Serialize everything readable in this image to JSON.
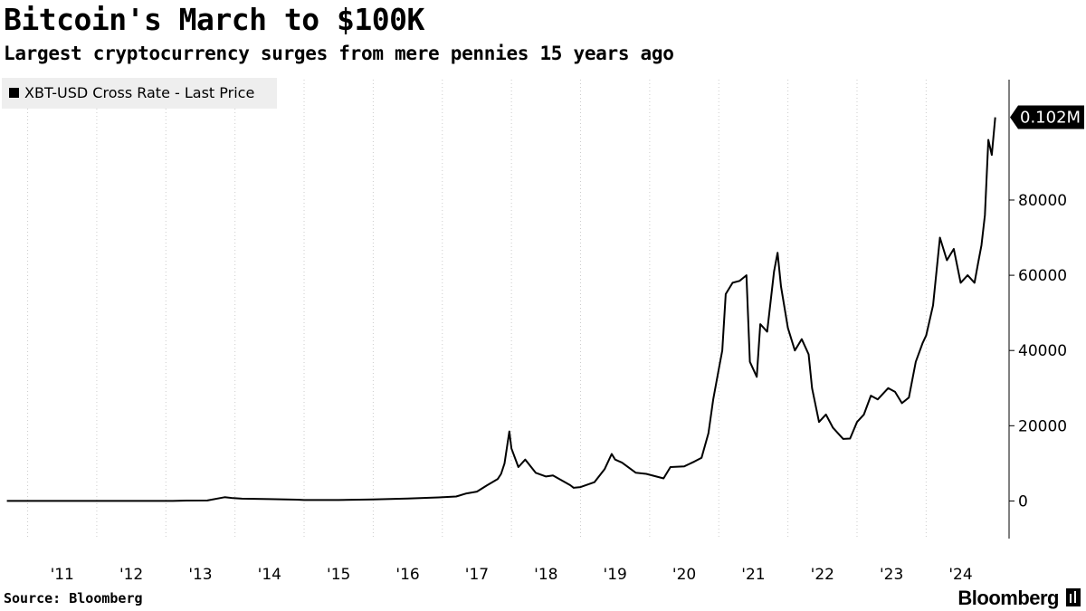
{
  "header": {
    "title": "Bitcoin's March to $100K",
    "subtitle": "Largest cryptocurrency surges from mere pennies 15 years ago"
  },
  "footer": {
    "source": "Source: Bloomberg",
    "brand": "Bloomberg"
  },
  "colors": {
    "line": "#000000",
    "grid": "#cccccc",
    "legend_bg": "#eeeeee"
  },
  "chart_data": {
    "type": "line",
    "title": "Bitcoin's March to $100K",
    "subtitle": "Largest cryptocurrency surges from mere pennies 15 years ago",
    "series": [
      {
        "name": "XBT-USD Cross Rate - Last Price",
        "x": [
          2010.7,
          2011.0,
          2011.4,
          2011.8,
          2012.0,
          2012.5,
          2012.9,
          2013.1,
          2013.3,
          2013.6,
          2013.85,
          2013.95,
          2014.1,
          2014.5,
          2014.9,
          2015.0,
          2015.5,
          2015.9,
          2016.0,
          2016.5,
          2016.95,
          2017.2,
          2017.35,
          2017.5,
          2017.65,
          2017.8,
          2017.85,
          2017.9,
          2017.97,
          2018.0,
          2018.1,
          2018.2,
          2018.35,
          2018.5,
          2018.6,
          2018.85,
          2018.9,
          2019.0,
          2019.2,
          2019.35,
          2019.45,
          2019.5,
          2019.6,
          2019.8,
          2019.95,
          2020.2,
          2020.3,
          2020.5,
          2020.65,
          2020.75,
          2020.85,
          2020.92,
          2021.0,
          2021.05,
          2021.1,
          2021.2,
          2021.3,
          2021.4,
          2021.45,
          2021.55,
          2021.6,
          2021.7,
          2021.8,
          2021.85,
          2021.9,
          2022.0,
          2022.1,
          2022.2,
          2022.3,
          2022.35,
          2022.45,
          2022.55,
          2022.65,
          2022.8,
          2022.9,
          2023.0,
          2023.1,
          2023.2,
          2023.3,
          2023.45,
          2023.55,
          2023.65,
          2023.75,
          2023.85,
          2023.95,
          2024.0,
          2024.1,
          2024.2,
          2024.3,
          2024.4,
          2024.5,
          2024.6,
          2024.7,
          2024.75,
          2024.8,
          2024.85,
          2024.9,
          2024.95,
          2025.0
        ],
        "y": [
          0.1,
          0.3,
          15,
          3,
          5,
          7,
          13,
          20,
          100,
          120,
          1000,
          800,
          600,
          500,
          350,
          250,
          240,
          360,
          430,
          650,
          950,
          1200,
          2000,
          2500,
          4200,
          5800,
          7200,
          10000,
          18500,
          14000,
          9000,
          11000,
          7500,
          6500,
          6800,
          4200,
          3500,
          3700,
          5000,
          8500,
          12500,
          11000,
          10200,
          7500,
          7200,
          6000,
          9000,
          9200,
          10500,
          11500,
          18000,
          27000,
          35000,
          40000,
          55000,
          58000,
          58500,
          60000,
          37000,
          33000,
          47000,
          45000,
          61000,
          66000,
          57000,
          46000,
          40000,
          43000,
          39000,
          30000,
          21000,
          23000,
          19500,
          16500,
          16600,
          21000,
          23000,
          28000,
          27000,
          30000,
          29000,
          26000,
          27500,
          37000,
          42000,
          44000,
          52000,
          70000,
          64000,
          67000,
          58000,
          60000,
          58000,
          63000,
          68000,
          76000,
          96000,
          92000,
          102000
        ]
      }
    ],
    "xlabel": "",
    "ylabel": "",
    "x_ticks": [
      "'11",
      "'12",
      "'13",
      "'14",
      "'15",
      "'16",
      "'17",
      "'18",
      "'19",
      "'20",
      "'21",
      "'22",
      "'23",
      "'24"
    ],
    "y_ticks": [
      "0",
      "20000",
      "40000",
      "60000",
      "80000"
    ],
    "xlim": [
      2010.6,
      2025.2
    ],
    "ylim": [
      -10000,
      112000
    ],
    "last_price_label": "0.102M",
    "legend_placement": "top-left",
    "grid": "vertical dotted"
  }
}
